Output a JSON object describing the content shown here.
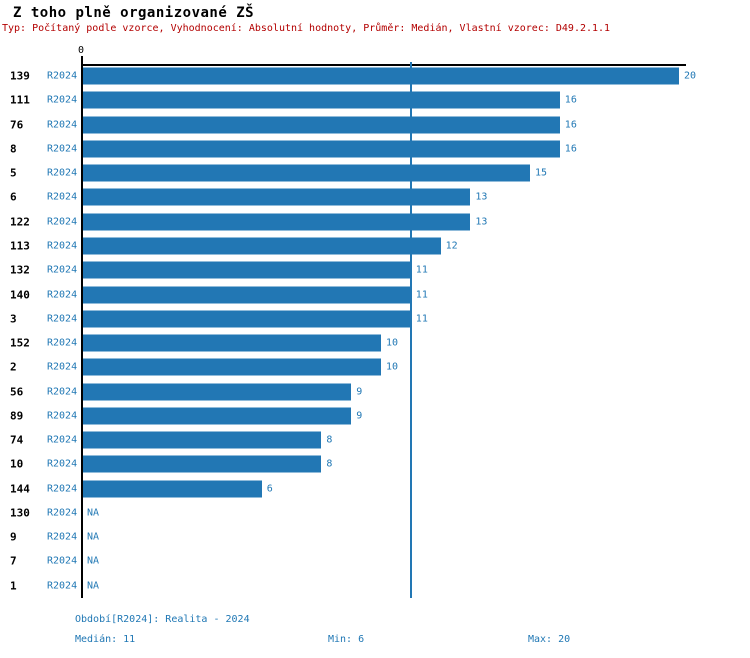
{
  "title": "Z toho plně organizované ZŠ",
  "subtitle": "Typ: Počítaný podle vzorce, Vyhodnocení: Absolutní hodnoty, Průměr: Medián, Vlastní vzorec: D49.2.1.1",
  "chart_data": {
    "type": "bar",
    "orientation": "horizontal",
    "title": "Z toho plně organizované ZŠ",
    "x_ticks": [
      "0"
    ],
    "xlim": [
      0,
      20
    ],
    "categories": [
      "139",
      "111",
      "76",
      "8",
      "5",
      "6",
      "122",
      "113",
      "132",
      "140",
      "3",
      "152",
      "2",
      "56",
      "89",
      "74",
      "10",
      "144",
      "130",
      "9",
      "7",
      "1"
    ],
    "series": [
      {
        "name": "R2024",
        "values": [
          20,
          16,
          16,
          16,
          15,
          13,
          13,
          12,
          11,
          11,
          11,
          10,
          10,
          9,
          9,
          8,
          8,
          6,
          null,
          null,
          null,
          null
        ]
      }
    ],
    "na_label": "NA",
    "median": 11,
    "min": 6,
    "max": 20,
    "grid": false,
    "legend_position": "none"
  },
  "footer": {
    "period_label": "Období[R2024]: Realita - 2024",
    "median_label": "Medián: 11",
    "min_label": "Min: 6",
    "max_label": "Max: 20"
  },
  "colors": {
    "bar": "#2277b4",
    "label_blue": "#1f77b4",
    "subtitle_red": "#b30000",
    "axis_black": "#000000",
    "background": "#ffffff"
  }
}
